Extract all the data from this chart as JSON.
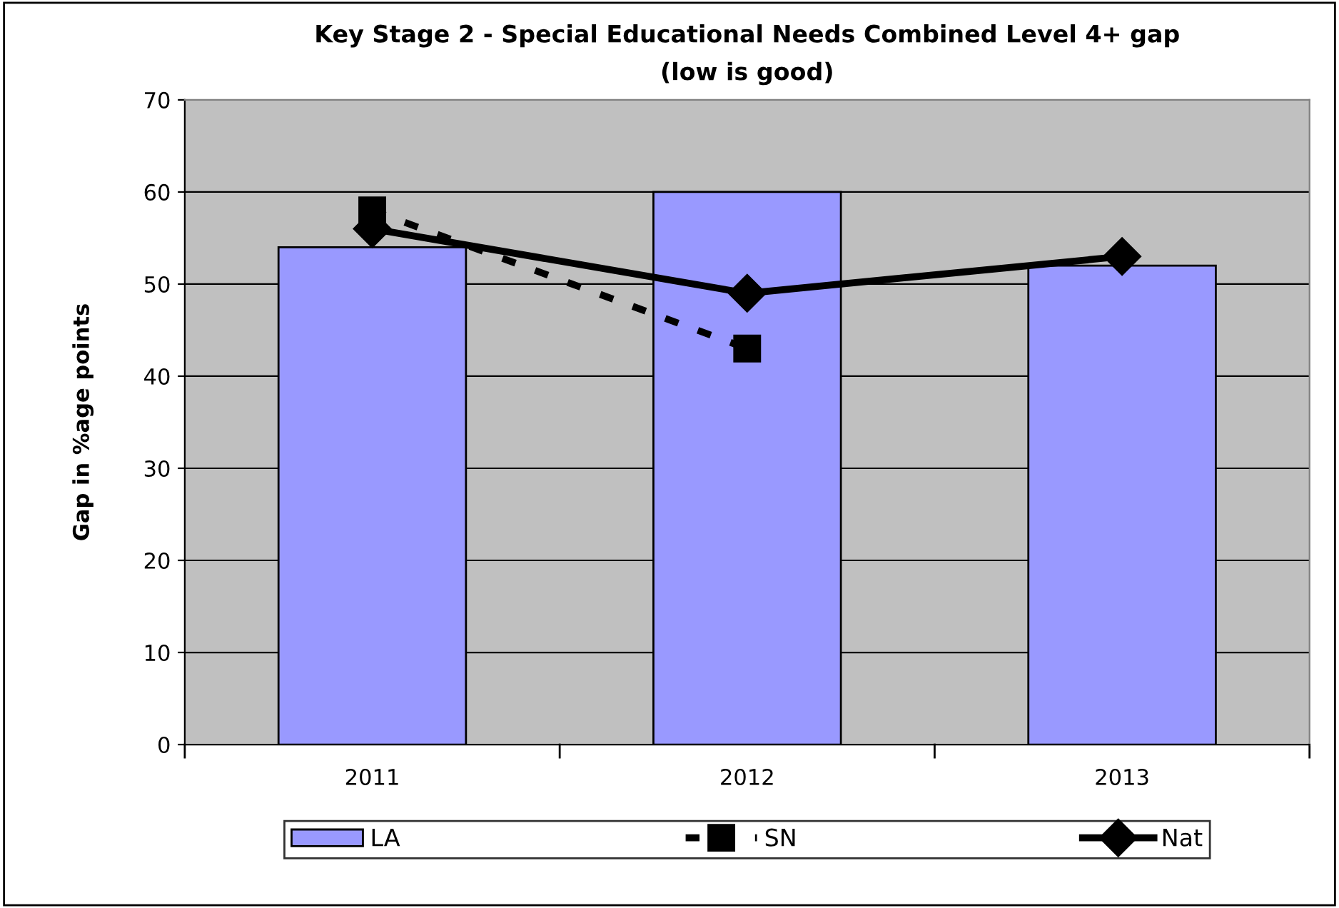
{
  "chart_data": {
    "type": "bar",
    "title": "Key Stage 2 - Special Educational Needs Combined Level 4+ gap\n(low is good)",
    "ylabel": "Gap in %age points",
    "categories": [
      "2011",
      "2012",
      "2013"
    ],
    "series": [
      {
        "name": "LA",
        "color": "#9999ff",
        "values": [
          54,
          60,
          52
        ]
      },
      {
        "name": "SN",
        "type": "line",
        "color": "#000000",
        "marker": "square",
        "line_style": "dashed",
        "values": [
          58,
          43,
          null
        ]
      },
      {
        "name": "Nat",
        "type": "line",
        "color": "#000000",
        "marker": "diamond",
        "line_style": "solid",
        "values": [
          56,
          49,
          53
        ]
      }
    ],
    "ylim": [
      0,
      70
    ],
    "yticks": [
      0,
      10,
      20,
      30,
      40,
      50,
      60,
      70
    ],
    "grid": "y",
    "legend": "bottom"
  }
}
